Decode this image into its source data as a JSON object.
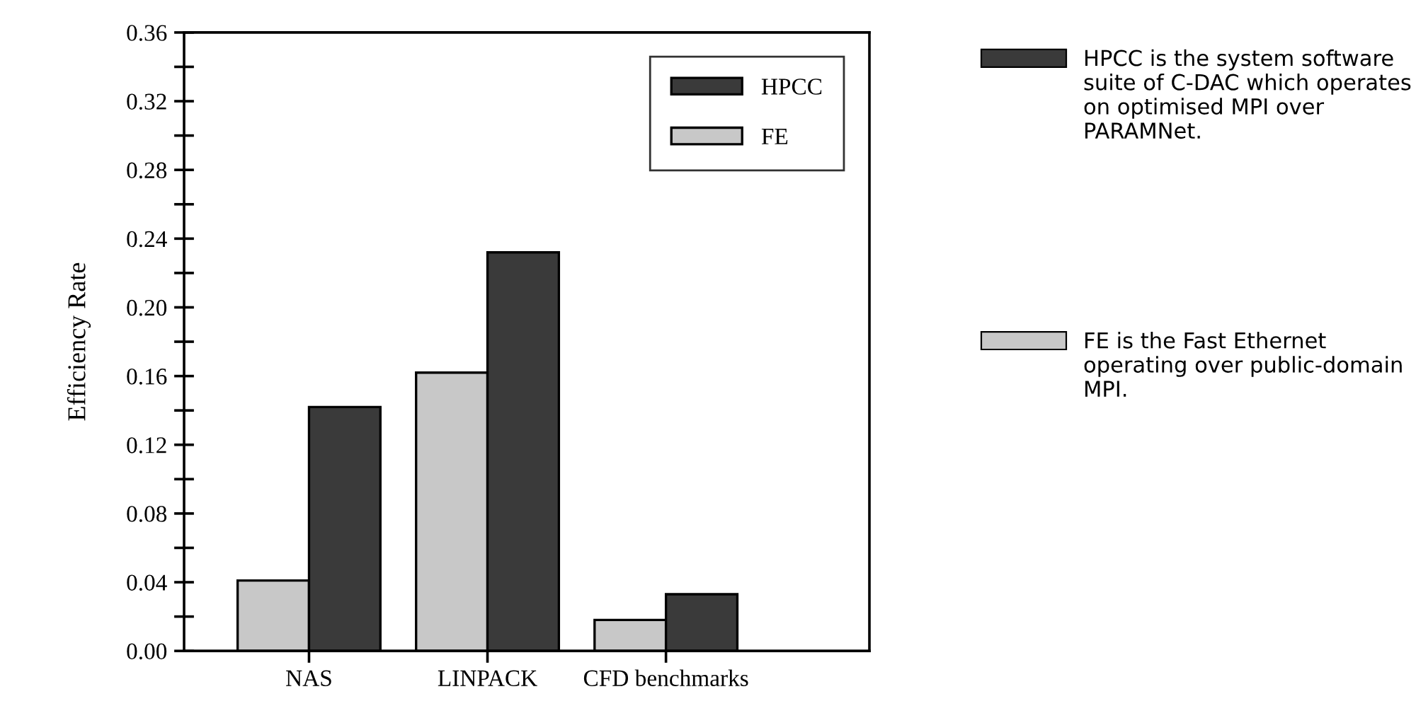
{
  "chart_data": {
    "type": "bar",
    "ylabel": "Efficiency Rate",
    "categories": [
      "NAS",
      "LINPACK",
      "CFD benchmarks"
    ],
    "series": [
      {
        "name": "FE",
        "color": "#c8c8c8",
        "values": [
          0.041,
          0.162,
          0.018
        ]
      },
      {
        "name": "HPCC",
        "color": "#3a3a3a",
        "values": [
          0.142,
          0.232,
          0.033
        ]
      }
    ],
    "ylim": [
      0,
      0.36
    ],
    "yticks": [
      {
        "value": 0,
        "label": "0.00"
      },
      {
        "value": 0.02,
        "label": null
      },
      {
        "value": 0.04,
        "label": "0.04"
      },
      {
        "value": 0.06,
        "label": null
      },
      {
        "value": 0.08,
        "label": "0.08"
      },
      {
        "value": 0.1,
        "label": null
      },
      {
        "value": 0.12,
        "label": "0.12"
      },
      {
        "value": 0.14,
        "label": null
      },
      {
        "value": 0.16,
        "label": "0.16"
      },
      {
        "value": 0.18,
        "label": null
      },
      {
        "value": 0.2,
        "label": "0.20"
      },
      {
        "value": 0.22,
        "label": null
      },
      {
        "value": 0.24,
        "label": "0.24"
      },
      {
        "value": 0.26,
        "label": null
      },
      {
        "value": 0.28,
        "label": "0.28"
      },
      {
        "value": 0.3,
        "label": null
      },
      {
        "value": 0.32,
        "label": "0.32"
      },
      {
        "value": 0.34,
        "label": null
      },
      {
        "value": 0.36,
        "label": "0.36"
      }
    ],
    "legend": "top right",
    "grid": false,
    "annotations": [
      "HPCC is the system software suite of C-DAC which operates on optimised MPI over PARAMNet.",
      "FE is the Fast Ethernet operating over public-domain MPI."
    ]
  }
}
